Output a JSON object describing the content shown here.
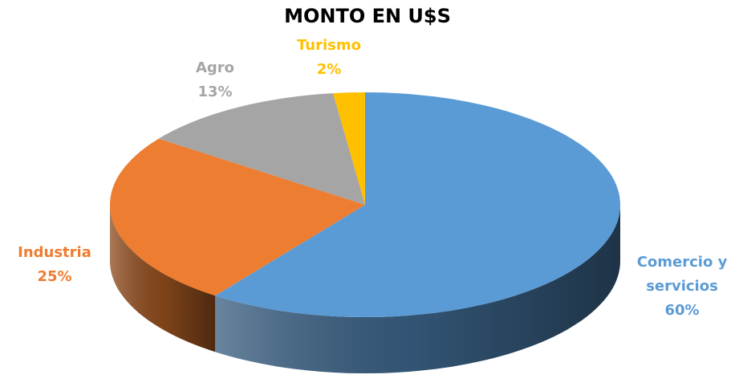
{
  "chart_data": {
    "type": "pie",
    "title": "MONTO EN U$S",
    "categories": [
      "Comercio y servicios",
      "Industria",
      "Agro",
      "Turismo"
    ],
    "values": [
      60,
      25,
      13,
      2
    ],
    "value_labels": [
      "60%",
      "25%",
      "13%",
      "2%"
    ],
    "colors": [
      "#5b9bd5",
      "#ed7d31",
      "#a5a5a5",
      "#ffc000"
    ]
  }
}
